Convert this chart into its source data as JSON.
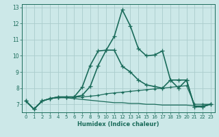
{
  "xlabel": "Humidex (Indice chaleur)",
  "ylabel": "",
  "xlim": [
    -0.5,
    23.5
  ],
  "ylim": [
    6.5,
    13.2
  ],
  "yticks": [
    7,
    8,
    9,
    10,
    11,
    12,
    13
  ],
  "xticks": [
    0,
    1,
    2,
    3,
    4,
    5,
    6,
    7,
    8,
    9,
    10,
    11,
    12,
    13,
    14,
    15,
    16,
    17,
    18,
    19,
    20,
    21,
    22,
    23
  ],
  "background_color": "#cce8e8",
  "grid_color": "#aacccc",
  "line_color": "#1a6b5a",
  "lines": [
    {
      "x": [
        0,
        1,
        2,
        3,
        4,
        5,
        6,
        7,
        8,
        9,
        10,
        11,
        12,
        13,
        14,
        15,
        16,
        17,
        18,
        19,
        20,
        21,
        22,
        23
      ],
      "y": [
        7.2,
        6.7,
        7.2,
        7.35,
        7.45,
        7.45,
        7.45,
        8.05,
        9.4,
        10.3,
        10.35,
        11.2,
        12.85,
        11.85,
        10.45,
        10.0,
        10.05,
        10.3,
        8.5,
        8.0,
        8.5,
        6.85,
        6.85,
        7.0
      ],
      "marker": "+",
      "markersize": 4,
      "linewidth": 1.2
    },
    {
      "x": [
        0,
        1,
        2,
        3,
        4,
        5,
        6,
        7,
        8,
        9,
        10,
        11,
        12,
        13,
        14,
        15,
        16,
        17,
        18,
        19,
        20,
        21,
        22,
        23
      ],
      "y": [
        7.2,
        6.7,
        7.2,
        7.35,
        7.45,
        7.45,
        7.45,
        7.55,
        8.1,
        9.4,
        10.35,
        10.35,
        9.35,
        9.0,
        8.5,
        8.2,
        8.1,
        8.0,
        8.5,
        8.5,
        8.5,
        6.85,
        6.85,
        7.0
      ],
      "marker": "+",
      "markersize": 4,
      "linewidth": 1.2
    },
    {
      "x": [
        0,
        1,
        2,
        3,
        4,
        5,
        6,
        7,
        8,
        9,
        10,
        11,
        12,
        13,
        14,
        15,
        16,
        17,
        18,
        19,
        20,
        21,
        22,
        23
      ],
      "y": [
        7.2,
        6.7,
        7.2,
        7.35,
        7.45,
        7.45,
        7.45,
        7.45,
        7.5,
        7.55,
        7.65,
        7.7,
        7.75,
        7.8,
        7.85,
        7.9,
        7.95,
        8.0,
        8.05,
        8.1,
        8.15,
        7.0,
        7.0,
        7.0
      ],
      "marker": "+",
      "markersize": 3,
      "linewidth": 0.9
    },
    {
      "x": [
        0,
        1,
        2,
        3,
        4,
        5,
        6,
        7,
        8,
        9,
        10,
        11,
        12,
        13,
        14,
        15,
        16,
        17,
        18,
        19,
        20,
        21,
        22,
        23
      ],
      "y": [
        7.2,
        6.7,
        7.2,
        7.35,
        7.4,
        7.4,
        7.35,
        7.3,
        7.25,
        7.2,
        7.15,
        7.1,
        7.1,
        7.05,
        7.05,
        7.0,
        7.0,
        6.95,
        6.95,
        6.95,
        6.95,
        6.9,
        6.9,
        7.0
      ],
      "marker": null,
      "markersize": 0,
      "linewidth": 0.9
    }
  ]
}
